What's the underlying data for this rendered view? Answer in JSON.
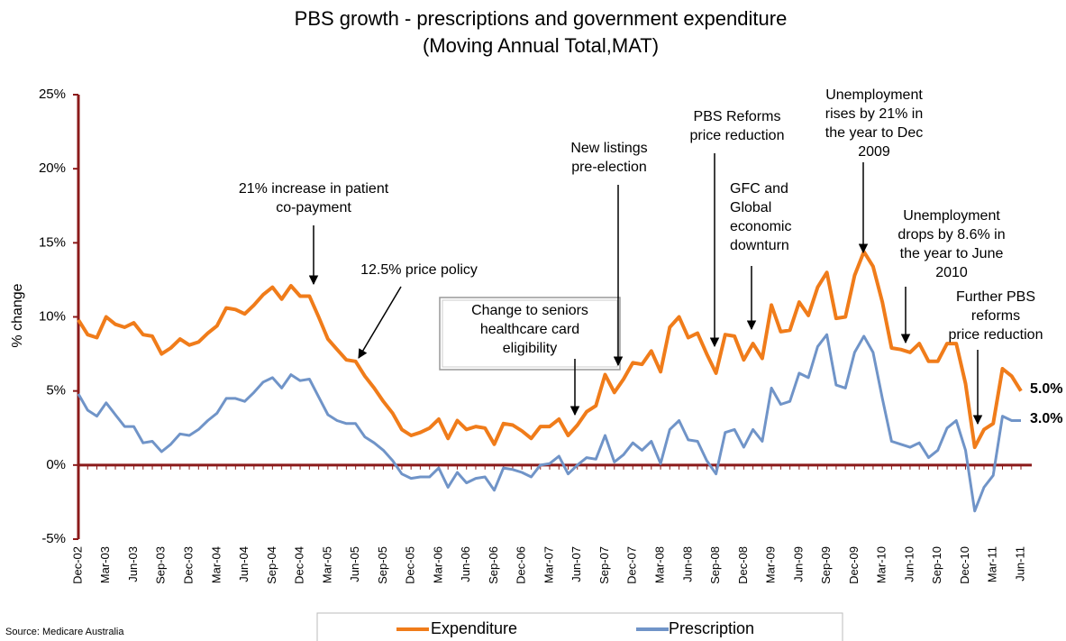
{
  "chart_data": {
    "type": "line",
    "title": "PBS growth - prescriptions and government expenditure",
    "subtitle": "(Moving Annual Total,MAT)",
    "y_label": "% change",
    "source": "Source: Medicare Australia",
    "categories": [
      "Dec-02",
      null,
      null,
      "Mar-03",
      null,
      null,
      "Jun-03",
      null,
      null,
      "Sep-03",
      null,
      null,
      "Dec-03",
      null,
      null,
      "Mar-04",
      null,
      null,
      "Jun-04",
      null,
      null,
      "Sep-04",
      null,
      null,
      "Dec-04",
      null,
      null,
      "Mar-05",
      null,
      null,
      "Jun-05",
      null,
      null,
      "Sep-05",
      null,
      null,
      "Dec-05",
      null,
      null,
      "Mar-06",
      null,
      null,
      "Jun-06",
      null,
      null,
      "Sep-06",
      null,
      null,
      "Dec-06",
      null,
      null,
      "Mar-07",
      null,
      null,
      "Jun-07",
      null,
      null,
      "Sep-07",
      null,
      null,
      "Dec-07",
      null,
      null,
      "Mar-08",
      null,
      null,
      "Jun-08",
      null,
      null,
      "Sep-08",
      null,
      null,
      "Dec-08",
      null,
      null,
      "Mar-09",
      null,
      null,
      "Jun-09",
      null,
      null,
      "Sep-09",
      null,
      null,
      "Dec-09",
      null,
      null,
      "Mar-10",
      null,
      null,
      "Jun-10",
      null,
      null,
      "Sep-10",
      null,
      null,
      "Dec-10",
      null,
      null,
      "Mar-11",
      null,
      null,
      "Jun-11"
    ],
    "series": [
      {
        "name": "Expenditure",
        "color": "#f07c1a",
        "end_label": "5.0%",
        "values": [
          9.8,
          8.8,
          8.6,
          10.0,
          9.5,
          9.3,
          9.6,
          8.8,
          8.7,
          7.5,
          7.9,
          8.5,
          8.1,
          8.3,
          8.9,
          9.4,
          10.6,
          10.5,
          10.2,
          10.8,
          11.5,
          12.0,
          11.2,
          12.1,
          11.4,
          11.4,
          10.0,
          8.5,
          7.8,
          7.1,
          7.0,
          6.0,
          5.2,
          4.3,
          3.5,
          2.4,
          2.0,
          2.2,
          2.5,
          3.1,
          1.8,
          3.0,
          2.4,
          2.6,
          2.5,
          1.4,
          2.8,
          2.7,
          2.3,
          1.8,
          2.6,
          2.6,
          3.1,
          2.0,
          2.7,
          3.6,
          4.0,
          6.1,
          4.9,
          5.8,
          6.9,
          6.8,
          7.7,
          6.3,
          9.3,
          10.0,
          8.6,
          8.9,
          7.5,
          6.2,
          8.8,
          8.7,
          7.1,
          8.2,
          7.2,
          10.8,
          9.0,
          9.1,
          11.0,
          10.1,
          12.0,
          13.0,
          9.9,
          10.0,
          12.8,
          14.4,
          13.4,
          11.0,
          7.9,
          7.8,
          7.6,
          8.2,
          7.0,
          7.0,
          8.2,
          8.2,
          5.5,
          1.2,
          2.4,
          2.8,
          6.5,
          6.0,
          5.0
        ]
      },
      {
        "name": "Prescription",
        "color": "#7094c8",
        "end_label": "3.0%",
        "values": [
          4.8,
          3.7,
          3.3,
          4.2,
          3.4,
          2.6,
          2.6,
          1.5,
          1.6,
          0.9,
          1.4,
          2.1,
          2.0,
          2.4,
          3.0,
          3.5,
          4.5,
          4.5,
          4.3,
          4.9,
          5.6,
          5.9,
          5.2,
          6.1,
          5.7,
          5.8,
          4.6,
          3.4,
          3.0,
          2.8,
          2.8,
          1.9,
          1.5,
          1.0,
          0.3,
          -0.6,
          -0.9,
          -0.8,
          -0.8,
          -0.2,
          -1.5,
          -0.5,
          -1.2,
          -0.9,
          -0.8,
          -1.7,
          -0.2,
          -0.3,
          -0.5,
          -0.8,
          0.0,
          0.1,
          0.6,
          -0.6,
          0.0,
          0.5,
          0.4,
          2.0,
          0.2,
          0.7,
          1.5,
          1.0,
          1.6,
          0.1,
          2.4,
          3.0,
          1.7,
          1.6,
          0.3,
          -0.6,
          2.2,
          2.4,
          1.2,
          2.4,
          1.6,
          5.2,
          4.1,
          4.3,
          6.2,
          5.9,
          8.0,
          8.8,
          5.4,
          5.2,
          7.6,
          8.7,
          7.6,
          4.5,
          1.6,
          1.4,
          1.2,
          1.5,
          0.5,
          1.0,
          2.5,
          3.0,
          1.0,
          -3.1,
          -1.5,
          -0.7,
          3.3,
          3.0,
          3.0
        ]
      }
    ],
    "ylim": [
      -5,
      25
    ],
    "yticks": [
      {
        "value": -5,
        "label": "-5%"
      },
      {
        "value": 0,
        "label": "0%"
      },
      {
        "value": 5,
        "label": "5%"
      },
      {
        "value": 10,
        "label": "10%"
      },
      {
        "value": 15,
        "label": "15%"
      },
      {
        "value": 20,
        "label": "20%"
      },
      {
        "value": 25,
        "label": "25%"
      }
    ],
    "annotations": [
      {
        "lines": [
          "21% increase in patient",
          "co-payment"
        ]
      },
      {
        "lines": [
          "12.5% price policy"
        ]
      },
      {
        "lines": [
          "Change to seniors",
          "healthcare card",
          "eligibility"
        ]
      },
      {
        "lines": [
          "New listings",
          "pre-election"
        ]
      },
      {
        "lines": [
          "PBS Reforms",
          "price reduction"
        ]
      },
      {
        "lines": [
          "GFC and",
          "Global",
          "economic",
          "downturn"
        ]
      },
      {
        "lines": [
          "Unemployment",
          "rises by 21% in",
          "the year to Dec",
          "2009"
        ]
      },
      {
        "lines": [
          "Unemployment",
          "drops by 8.6% in",
          "the year to June",
          "2010"
        ]
      },
      {
        "lines": [
          "Further PBS",
          "reforms",
          "price reduction"
        ]
      }
    ]
  }
}
